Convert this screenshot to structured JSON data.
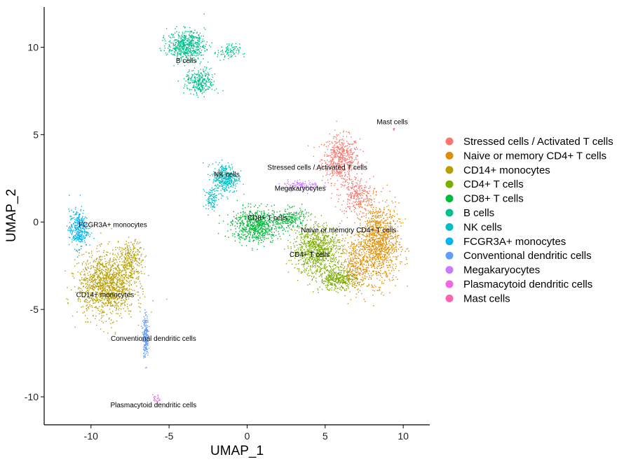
{
  "chart_data": {
    "type": "scatter",
    "title": "",
    "xlabel": "UMAP_1",
    "ylabel": "UMAP_2",
    "xlim": [
      -13,
      11.7
    ],
    "ylim": [
      -11.6,
      12.3
    ],
    "xticks": [
      -10,
      -5,
      0,
      5,
      10
    ],
    "xtick_labels": [
      "-10",
      "-5",
      "0",
      "5",
      "10"
    ],
    "yticks": [
      -10,
      -5,
      0,
      5,
      10
    ],
    "ytick_labels": [
      "-10",
      "-5",
      "0",
      "5",
      "10"
    ],
    "grid": false,
    "legend_position": "right",
    "series": [
      {
        "name": "Stressed cells / Activated T cells",
        "color": "#F8766D",
        "centroid": [
          6.0,
          2.5
        ],
        "label": "Stressed cells / Activated T cells",
        "label_at": [
          4.5,
          3.0
        ],
        "blobs": [
          {
            "cx": 6.0,
            "cy": 3.6,
            "sx": 1.0,
            "sy": 1.1,
            "n": 520
          },
          {
            "cx": 7.0,
            "cy": 1.5,
            "sx": 0.9,
            "sy": 0.9,
            "n": 260
          }
        ]
      },
      {
        "name": "Naive or memory CD4+ T cells",
        "color": "#DE8C00",
        "centroid": [
          8.2,
          -1.0
        ],
        "label": "Naive or memory CD4+ T cells",
        "label_at": [
          6.5,
          -0.6
        ],
        "blobs": [
          {
            "cx": 8.4,
            "cy": -1.2,
            "sx": 1.1,
            "sy": 1.9,
            "n": 1100
          },
          {
            "cx": 6.9,
            "cy": -2.5,
            "sx": 0.7,
            "sy": 1.2,
            "n": 300
          }
        ]
      },
      {
        "name": "CD14+ monocytes",
        "color": "#B79F00",
        "centroid": [
          -9.0,
          -3.6
        ],
        "label": "CD14+ monocytes",
        "label_at": [
          -9.1,
          -4.3
        ],
        "blobs": [
          {
            "cx": -9.0,
            "cy": -3.6,
            "sx": 1.5,
            "sy": 1.5,
            "n": 1300
          },
          {
            "cx": -7.4,
            "cy": -2.2,
            "sx": 0.6,
            "sy": 0.9,
            "n": 250
          }
        ]
      },
      {
        "name": "CD4+ T cells",
        "color": "#7CAE00",
        "centroid": [
          4.5,
          -1.8
        ],
        "label": "CD4+ T cells",
        "label_at": [
          4.0,
          -2.0
        ],
        "blobs": [
          {
            "cx": 4.5,
            "cy": -1.6,
            "sx": 1.3,
            "sy": 1.2,
            "n": 900
          },
          {
            "cx": 5.8,
            "cy": -3.3,
            "sx": 1.0,
            "sy": 0.5,
            "n": 350
          }
        ]
      },
      {
        "name": "CD8+ T cells",
        "color": "#00BA38",
        "centroid": [
          0.8,
          -0.3
        ],
        "label": "CD8+ T cells",
        "label_at": [
          1.3,
          0.1
        ],
        "blobs": [
          {
            "cx": 0.6,
            "cy": -0.2,
            "sx": 1.3,
            "sy": 0.8,
            "n": 700
          },
          {
            "cx": 2.8,
            "cy": 0.2,
            "sx": 0.8,
            "sy": 0.5,
            "n": 200
          }
        ]
      },
      {
        "name": "B cells",
        "color": "#00C08B",
        "centroid": [
          -3.8,
          9.4
        ],
        "label": "B cells",
        "label_at": [
          -3.9,
          9.1
        ],
        "blobs": [
          {
            "cx": -3.9,
            "cy": 10.1,
            "sx": 1.0,
            "sy": 0.7,
            "n": 550
          },
          {
            "cx": -3.0,
            "cy": 8.0,
            "sx": 0.8,
            "sy": 0.6,
            "n": 280
          },
          {
            "cx": -1.2,
            "cy": 9.7,
            "sx": 0.6,
            "sy": 0.4,
            "n": 90
          }
        ]
      },
      {
        "name": "NK cells",
        "color": "#00BFC4",
        "centroid": [
          -1.6,
          2.3
        ],
        "label": "NK cells",
        "label_at": [
          -1.3,
          2.6
        ],
        "blobs": [
          {
            "cx": -1.4,
            "cy": 2.5,
            "sx": 0.7,
            "sy": 0.7,
            "n": 380
          },
          {
            "cx": -2.3,
            "cy": 1.3,
            "sx": 0.3,
            "sy": 0.5,
            "n": 90
          }
        ]
      },
      {
        "name": "FCGR3A+ monocytes",
        "color": "#00B4F0",
        "centroid": [
          -10.9,
          -0.5
        ],
        "label": "FCGR3A+ monocytes",
        "label_at": [
          -8.6,
          -0.3
        ],
        "blobs": [
          {
            "cx": -10.8,
            "cy": -0.4,
            "sx": 0.5,
            "sy": 0.9,
            "n": 350
          }
        ]
      },
      {
        "name": "Conventional dendritic cells",
        "color": "#619CFF",
        "centroid": [
          -6.4,
          -6.7
        ],
        "label": "Conventional dendritic cells",
        "label_at": [
          -6.0,
          -6.8
        ],
        "blobs": [
          {
            "cx": -6.5,
            "cy": -6.5,
            "sx": 0.15,
            "sy": 1.0,
            "n": 200
          }
        ]
      },
      {
        "name": "Megakaryocytes",
        "color": "#C77CFF",
        "centroid": [
          3.0,
          2.0
        ],
        "label": "Megakaryocytes",
        "label_at": [
          3.4,
          1.8
        ],
        "blobs": [
          {
            "cx": 3.5,
            "cy": 2.1,
            "sx": 1.0,
            "sy": 0.25,
            "n": 110
          }
        ]
      },
      {
        "name": "Plasmacytoid dendritic cells",
        "color": "#F564E3",
        "centroid": [
          -5.7,
          -10.3
        ],
        "label": "Plasmacytoid dendritic cells",
        "label_at": [
          -6.0,
          -10.6
        ],
        "blobs": [
          {
            "cx": -5.8,
            "cy": -10.2,
            "sx": 0.2,
            "sy": 0.25,
            "n": 25
          }
        ]
      },
      {
        "name": "Mast cells",
        "color": "#FF64B0",
        "centroid": [
          9.4,
          5.3
        ],
        "label": "Mast cells",
        "label_at": [
          9.3,
          5.6
        ],
        "blobs": [
          {
            "cx": 9.4,
            "cy": 5.3,
            "sx": 0.04,
            "sy": 0.08,
            "n": 10
          }
        ]
      }
    ]
  }
}
